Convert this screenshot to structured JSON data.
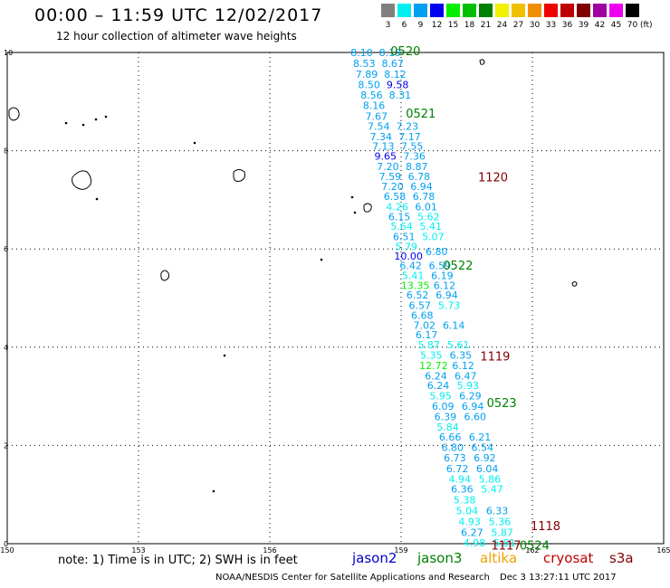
{
  "header": {
    "title": "00:00 – 11:59 UTC 12/02/2017",
    "subtitle": "12 hour collection of altimeter wave heights"
  },
  "legend": {
    "unit": "(ft)",
    "bins": [
      {
        "label": "3",
        "color": "#808080"
      },
      {
        "label": "6",
        "color": "#00f0f0"
      },
      {
        "label": "9",
        "color": "#00a0f0"
      },
      {
        "label": "12",
        "color": "#0000f0"
      },
      {
        "label": "15",
        "color": "#00f000"
      },
      {
        "label": "18",
        "color": "#00c000"
      },
      {
        "label": "21",
        "color": "#008000"
      },
      {
        "label": "24",
        "color": "#f0f000"
      },
      {
        "label": "27",
        "color": "#f0c000"
      },
      {
        "label": "30",
        "color": "#f09000"
      },
      {
        "label": "33",
        "color": "#f00000"
      },
      {
        "label": "36",
        "color": "#c00000"
      },
      {
        "label": "39",
        "color": "#800000"
      },
      {
        "label": "42",
        "color": "#a000a0"
      },
      {
        "label": "45",
        "color": "#f000f0"
      },
      {
        "label": "70",
        "color": "#000000"
      }
    ]
  },
  "axes": {
    "lon_ticks": [
      "150",
      "153",
      "156",
      "159",
      "162",
      "165"
    ],
    "lat_ticks": [
      "0",
      "2",
      "4",
      "6",
      "8",
      "10"
    ]
  },
  "swh_points": [
    {
      "v": "8.10",
      "lat": 10.0,
      "c": "#00a0f0"
    },
    {
      "v": "8.53",
      "lat": 9.78,
      "c": "#00a0f0"
    },
    {
      "v": "7.89",
      "lat": 9.56,
      "c": "#00a0f0"
    },
    {
      "v": "8.50",
      "lat": 9.35,
      "c": "#00a0f0"
    },
    {
      "v": "8.56",
      "lat": 9.13,
      "c": "#00a0f0"
    },
    {
      "v": "8.16",
      "lat": 8.92,
      "c": "#00a0f0"
    },
    {
      "v": "7.67",
      "lat": 8.7,
      "c": "#00a0f0"
    },
    {
      "v": "7.54",
      "lat": 8.5,
      "c": "#00a0f0"
    },
    {
      "v": "7.34",
      "lat": 8.29,
      "c": "#00a0f0"
    },
    {
      "v": "7.13",
      "lat": 8.09,
      "c": "#00a0f0"
    },
    {
      "v": "9.65",
      "lat": 7.89,
      "c": "#0000f0"
    },
    {
      "v": "7.20",
      "lat": 7.68,
      "c": "#00a0f0"
    },
    {
      "v": "7.59",
      "lat": 7.48,
      "c": "#00a0f0"
    },
    {
      "v": "7.20",
      "lat": 7.27,
      "c": "#00a0f0"
    },
    {
      "v": "6.58",
      "lat": 7.07,
      "c": "#00a0f0"
    },
    {
      "v": "4.26",
      "lat": 6.86,
      "c": "#00f0f0"
    },
    {
      "v": "6.15",
      "lat": 6.66,
      "c": "#00a0f0"
    },
    {
      "v": "5.64",
      "lat": 6.46,
      "c": "#00f0f0"
    },
    {
      "v": "6.51",
      "lat": 6.25,
      "c": "#00a0f0"
    },
    {
      "v": "5.79",
      "lat": 6.05,
      "c": "#00f0f0"
    },
    {
      "v": "10.00",
      "lat": 5.86,
      "c": "#0000f0"
    },
    {
      "v": "6.42",
      "lat": 5.66,
      "c": "#00a0f0"
    },
    {
      "v": "5.41",
      "lat": 5.46,
      "c": "#00f0f0"
    },
    {
      "v": "13.35",
      "lat": 5.26,
      "c": "#00f000"
    },
    {
      "v": "6.52",
      "lat": 5.06,
      "c": "#00a0f0"
    },
    {
      "v": "6.57",
      "lat": 4.85,
      "c": "#00a0f0"
    },
    {
      "v": "6.68",
      "lat": 4.65,
      "c": "#00a0f0"
    },
    {
      "v": "7.02",
      "lat": 4.45,
      "c": "#00a0f0"
    },
    {
      "v": "6.17",
      "lat": 4.25,
      "c": "#00a0f0"
    },
    {
      "v": "5.87",
      "lat": 4.05,
      "c": "#00f0f0"
    },
    {
      "v": "5.35",
      "lat": 3.84,
      "c": "#00f0f0"
    },
    {
      "v": "12.72",
      "lat": 3.63,
      "c": "#00f000"
    },
    {
      "v": "6.24",
      "lat": 3.42,
      "c": "#00a0f0"
    },
    {
      "v": "6.24",
      "lat": 3.22,
      "c": "#00a0f0"
    },
    {
      "v": "5.95",
      "lat": 3.01,
      "c": "#00f0f0"
    },
    {
      "v": "6.09",
      "lat": 2.8,
      "c": "#00a0f0"
    },
    {
      "v": "6.39",
      "lat": 2.59,
      "c": "#00a0f0"
    },
    {
      "v": "5.84",
      "lat": 2.38,
      "c": "#00f0f0"
    },
    {
      "v": "6.66",
      "lat": 2.17,
      "c": "#00a0f0"
    },
    {
      "v": "6.80",
      "lat": 1.96,
      "c": "#00a0f0"
    },
    {
      "v": "6.73",
      "lat": 1.75,
      "c": "#00a0f0"
    },
    {
      "v": "6.72",
      "lat": 1.53,
      "c": "#00a0f0"
    },
    {
      "v": "4.94",
      "lat": 1.32,
      "c": "#00f0f0"
    },
    {
      "v": "6.36",
      "lat": 1.11,
      "c": "#00a0f0"
    },
    {
      "v": "5.38",
      "lat": 0.89,
      "c": "#00f0f0"
    },
    {
      "v": "5.04",
      "lat": 0.67,
      "c": "#00f0f0"
    },
    {
      "v": "4.93",
      "lat": 0.45,
      "c": "#00f0f0"
    },
    {
      "v": "6.27",
      "lat": 0.23,
      "c": "#00a0f0"
    },
    {
      "v": "4.98",
      "lat": 0.02,
      "c": "#00f0f0"
    }
  ],
  "swh_points_b": [
    {
      "v": "8.19",
      "lat": 10.0,
      "c": "#00a0f0"
    },
    {
      "v": "8.67",
      "lat": 9.78,
      "c": "#00a0f0"
    },
    {
      "v": "8.12",
      "lat": 9.56,
      "c": "#00a0f0"
    },
    {
      "v": "9.58",
      "lat": 9.35,
      "c": "#0000f0"
    },
    {
      "v": "8.31",
      "lat": 9.13,
      "c": "#00a0f0"
    },
    {
      "v": "7.23",
      "lat": 8.5,
      "c": "#00a0f0"
    },
    {
      "v": "7.17",
      "lat": 8.29,
      "c": "#00a0f0"
    },
    {
      "v": "7.55",
      "lat": 8.09,
      "c": "#00a0f0"
    },
    {
      "v": "7.36",
      "lat": 7.89,
      "c": "#00a0f0"
    },
    {
      "v": "8.87",
      "lat": 7.68,
      "c": "#00a0f0"
    },
    {
      "v": "6.78",
      "lat": 7.48,
      "c": "#00a0f0"
    },
    {
      "v": "6.94",
      "lat": 7.27,
      "c": "#00a0f0"
    },
    {
      "v": "6.78",
      "lat": 7.07,
      "c": "#00a0f0"
    },
    {
      "v": "6.01",
      "lat": 6.86,
      "c": "#00a0f0"
    },
    {
      "v": "5.62",
      "lat": 6.66,
      "c": "#00f0f0"
    },
    {
      "v": "5.41",
      "lat": 6.46,
      "c": "#00f0f0"
    },
    {
      "v": "5.07",
      "lat": 6.25,
      "c": "#00f0f0"
    },
    {
      "v": "6.80",
      "lat": 5.95,
      "c": "#00a0f0"
    },
    {
      "v": "6.59",
      "lat": 5.66,
      "c": "#00a0f0"
    },
    {
      "v": "6.19",
      "lat": 5.46,
      "c": "#00a0f0"
    },
    {
      "v": "6.12",
      "lat": 5.26,
      "c": "#00a0f0"
    },
    {
      "v": "6.94",
      "lat": 5.06,
      "c": "#00a0f0"
    },
    {
      "v": "5.73",
      "lat": 4.85,
      "c": "#00f0f0"
    },
    {
      "v": "6.14",
      "lat": 4.45,
      "c": "#00a0f0"
    },
    {
      "v": "5.61",
      "lat": 4.05,
      "c": "#00f0f0"
    },
    {
      "v": "6.35",
      "lat": 3.84,
      "c": "#00a0f0"
    },
    {
      "v": "6.12",
      "lat": 3.63,
      "c": "#00a0f0"
    },
    {
      "v": "6.47",
      "lat": 3.42,
      "c": "#00a0f0"
    },
    {
      "v": "5.93",
      "lat": 3.22,
      "c": "#00f0f0"
    },
    {
      "v": "6.29",
      "lat": 3.01,
      "c": "#00a0f0"
    },
    {
      "v": "6.94",
      "lat": 2.8,
      "c": "#00a0f0"
    },
    {
      "v": "6.60",
      "lat": 2.59,
      "c": "#00a0f0"
    },
    {
      "v": "6.21",
      "lat": 2.17,
      "c": "#00a0f0"
    },
    {
      "v": "6.54",
      "lat": 1.96,
      "c": "#00a0f0"
    },
    {
      "v": "6.92",
      "lat": 1.75,
      "c": "#00a0f0"
    },
    {
      "v": "6.04",
      "lat": 1.53,
      "c": "#00a0f0"
    },
    {
      "v": "5.86",
      "lat": 1.32,
      "c": "#00f0f0"
    },
    {
      "v": "5.47",
      "lat": 1.11,
      "c": "#00f0f0"
    },
    {
      "v": "6.33",
      "lat": 0.67,
      "c": "#00a0f0"
    },
    {
      "v": "5.36",
      "lat": 0.45,
      "c": "#00f0f0"
    },
    {
      "v": "5.87",
      "lat": 0.23,
      "c": "#00f0f0"
    },
    {
      "v": "5.51",
      "lat": 0.02,
      "c": "#00f0f0"
    }
  ],
  "time_labels": [
    {
      "t": "0520",
      "lon": 159.1,
      "lat": 10.02,
      "c": "#008000"
    },
    {
      "t": "0521",
      "lon": 159.45,
      "lat": 8.75,
      "c": "#008000"
    },
    {
      "t": "1120",
      "lon": 161.1,
      "lat": 7.45,
      "c": "#800000"
    },
    {
      "t": "0522",
      "lon": 160.3,
      "lat": 5.65,
      "c": "#008000"
    },
    {
      "t": "1119",
      "lon": 161.15,
      "lat": 3.8,
      "c": "#800000"
    },
    {
      "t": "0523",
      "lon": 161.3,
      "lat": 2.85,
      "c": "#008000"
    },
    {
      "t": "1118",
      "lon": 162.3,
      "lat": 0.35,
      "c": "#800000"
    },
    {
      "t": "1117",
      "lon": 161.4,
      "lat": -0.05,
      "c": "#800000"
    },
    {
      "t": "0524",
      "lon": 162.05,
      "lat": -0.05,
      "c": "#008000"
    }
  ],
  "footer": {
    "note": "note: 1) Time is in UTC; 2) SWH is in feet",
    "satellites": [
      {
        "name": "jason2",
        "color": "#0000c8"
      },
      {
        "name": "jason3",
        "color": "#008000"
      },
      {
        "name": "altika",
        "color": "#f0a000"
      },
      {
        "name": "cryosat",
        "color": "#c00000"
      },
      {
        "name": "s3a",
        "color": "#800000"
      }
    ],
    "credit": "NOAA/NESDIS Center for Satellite Applications and Research",
    "timestamp": "Dec  3 13:27:11 UTC 2017"
  }
}
